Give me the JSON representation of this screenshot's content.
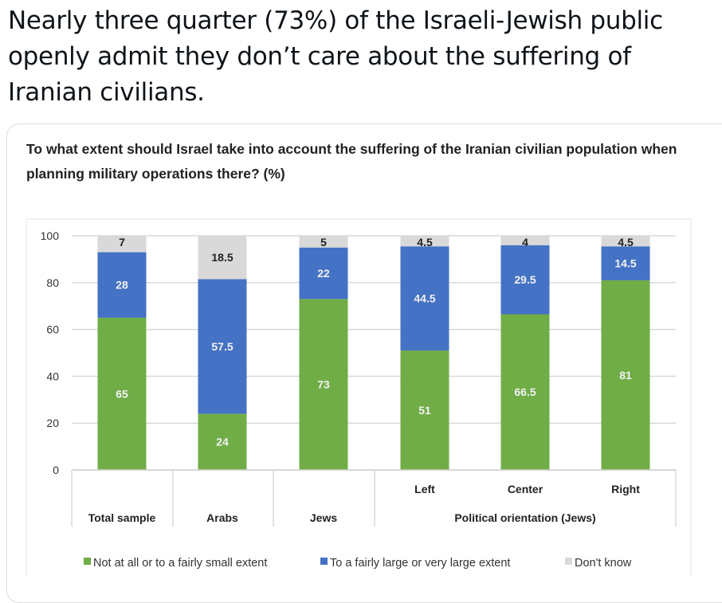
{
  "tweet": {
    "text": "Nearly three quarter (73%) of the Israeli-Jewish public openly admit they don’t care about the suffering of Iranian civilians."
  },
  "colors": {
    "green": "#70ad47",
    "blue": "#4472c4",
    "gray": "#d9d9d9"
  },
  "chart_data": {
    "type": "bar",
    "stacked": true,
    "title": "To what extent should Israel take into account the suffering of the Iranian civilian population when planning military operations there? (%)",
    "xlabel": "",
    "ylabel": "",
    "ylim": [
      0,
      100
    ],
    "yticks": [
      "0",
      "20",
      "40",
      "60",
      "80",
      "100"
    ],
    "grid": true,
    "legend_position": "bottom",
    "categories": [
      "Total sample",
      "Arabs",
      "Jews",
      "Left",
      "Center",
      "Right"
    ],
    "group_labels": [
      {
        "label": "Total sample",
        "members": [
          "Total sample"
        ]
      },
      {
        "label": "Arabs",
        "members": [
          "Arabs"
        ]
      },
      {
        "label": "Jews",
        "members": [
          "Jews"
        ]
      },
      {
        "label": "Political orientation (Jews)",
        "members": [
          "Left",
          "Center",
          "Right"
        ]
      }
    ],
    "series": [
      {
        "name": "Not at all or to a fairly small extent",
        "color": "#70ad47",
        "values": [
          65,
          24,
          73,
          51,
          66.5,
          81
        ]
      },
      {
        "name": "To a fairly large or very large extent",
        "color": "#4472c4",
        "values": [
          28,
          57.5,
          22,
          44.5,
          29.5,
          14.5
        ]
      },
      {
        "name": "Don't know",
        "color": "#d9d9d9",
        "values": [
          7,
          18.5,
          5,
          4.5,
          4,
          4.5
        ]
      }
    ]
  }
}
